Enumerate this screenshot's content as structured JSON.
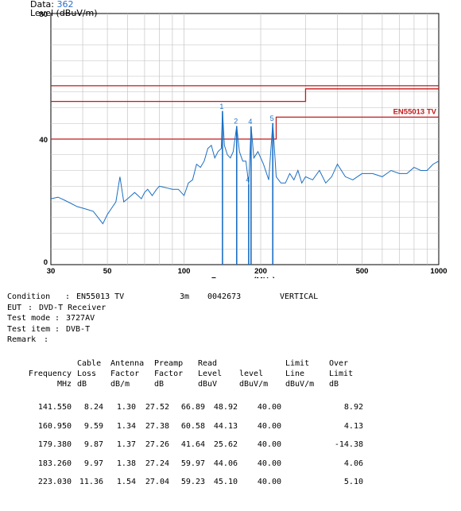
{
  "header": {
    "data_label": "Data:",
    "data_value": "362"
  },
  "chart_data": {
    "type": "line",
    "ylabel": "Level (dBuV/m)",
    "xlabel": "Frequency (MHz)",
    "xscale": "log",
    "xlim": [
      30,
      1000
    ],
    "ylim": [
      0,
      80
    ],
    "grid": true,
    "x_ticks": [
      30,
      50,
      100,
      200,
      500,
      1000
    ],
    "x_tick_labels": [
      "30",
      "50",
      "100",
      "200",
      "500",
      "1000"
    ],
    "y_ticks": [
      0,
      40,
      80
    ],
    "y_tick_labels": [
      "0",
      "40",
      "80"
    ],
    "limit_label": "EN55013 TV",
    "limits": [
      {
        "x": [
          30,
          230,
          230,
          300,
          300,
          1000
        ],
        "y": [
          40,
          40,
          47,
          47,
          47,
          47
        ]
      },
      {
        "x": [
          30,
          300,
          300,
          1000
        ],
        "y": [
          52,
          52,
          56,
          56
        ]
      },
      {
        "x": [
          30,
          1000
        ],
        "y": [
          57,
          57
        ]
      }
    ],
    "markers": [
      {
        "label": "1",
        "x": 141.55,
        "y": 48.92
      },
      {
        "label": "2",
        "x": 160.95,
        "y": 44.13
      },
      {
        "label": "4",
        "x": 179.38,
        "y": 25.62
      },
      {
        "label": "4",
        "x": 183.26,
        "y": 44.06
      },
      {
        "label": "5",
        "x": 223.03,
        "y": 45.1
      }
    ],
    "series": [
      {
        "x": [
          30,
          32,
          34,
          36,
          38,
          40,
          42,
          44,
          46,
          48,
          50,
          52,
          54,
          56,
          58,
          60,
          62,
          64,
          66,
          68,
          70,
          72,
          75,
          78,
          80,
          85,
          90,
          95,
          100,
          104,
          108,
          112,
          116,
          120,
          124,
          128,
          132,
          136,
          140,
          141.55,
          144,
          148,
          152,
          156,
          160.95,
          165,
          170,
          175,
          179.38,
          183.26,
          188,
          195,
          205,
          215,
          223.03,
          230,
          240,
          250,
          260,
          270,
          280,
          290,
          300,
          320,
          340,
          360,
          380,
          400,
          430,
          460,
          500,
          550,
          600,
          650,
          700,
          750,
          800,
          850,
          900,
          950,
          1000
        ],
        "y": [
          21,
          21.5,
          20.5,
          19.5,
          18.5,
          18,
          17.5,
          17,
          15,
          13,
          16,
          18,
          20,
          28,
          20,
          21,
          22,
          23,
          22,
          21,
          23,
          24,
          22,
          24,
          25,
          24.5,
          24,
          24,
          22,
          26,
          27,
          32,
          31,
          33,
          37,
          38,
          34,
          36,
          37,
          48.92,
          38,
          35,
          34,
          36,
          44.13,
          36,
          33,
          33,
          25.62,
          44.06,
          34,
          36,
          32,
          27,
          45.1,
          28,
          26,
          26,
          29,
          27,
          30,
          26,
          28,
          27,
          30,
          26,
          28,
          32,
          28,
          27,
          29,
          29,
          28,
          30,
          29,
          29,
          31,
          30,
          30,
          32,
          33
        ]
      }
    ]
  },
  "info": {
    "condition_label": "Condition",
    "condition_value": "EN55013 TV",
    "distance": "3m",
    "job_no": "0042673",
    "polarization": "VERTICAL",
    "eut_label": "EUT",
    "eut_value": "DVD-T Receiver",
    "mode_label": "Test mode",
    "mode_value": "3727AV",
    "item_label": "Test item",
    "item_value": "DVB-T",
    "remark_label": "Remark",
    "remark_value": ""
  },
  "table": {
    "headers_line1": [
      "",
      "Cable",
      "Antenna",
      "Preamp",
      "Read",
      "",
      "Limit",
      "Over"
    ],
    "headers_line2": [
      "Frequency",
      "Loss",
      "Factor",
      "Factor",
      "Level",
      "level",
      "Line",
      "Limit"
    ],
    "headers_line3": [
      "MHz",
      "dB",
      "dB/m",
      "dB",
      "dBuV",
      "dBuV/m",
      "dBuV/m",
      "dB"
    ],
    "rows": [
      [
        "141.550",
        "8.24",
        "1.30",
        "27.52",
        "66.89",
        "48.92",
        "40.00",
        "8.92"
      ],
      [
        "160.950",
        "9.59",
        "1.34",
        "27.38",
        "60.58",
        "44.13",
        "40.00",
        "4.13"
      ],
      [
        "179.380",
        "9.87",
        "1.37",
        "27.26",
        "41.64",
        "25.62",
        "40.00",
        "-14.38"
      ],
      [
        "183.260",
        "9.97",
        "1.38",
        "27.24",
        "59.97",
        "44.06",
        "40.00",
        "4.06"
      ],
      [
        "223.030",
        "11.36",
        "1.54",
        "27.04",
        "59.23",
        "45.10",
        "40.00",
        "5.10"
      ]
    ]
  },
  "colors": {
    "trace": "#1c6fc4",
    "limit": "#c21a1a",
    "marker": "#1c6fc4",
    "grid": "#bdbdbd"
  }
}
